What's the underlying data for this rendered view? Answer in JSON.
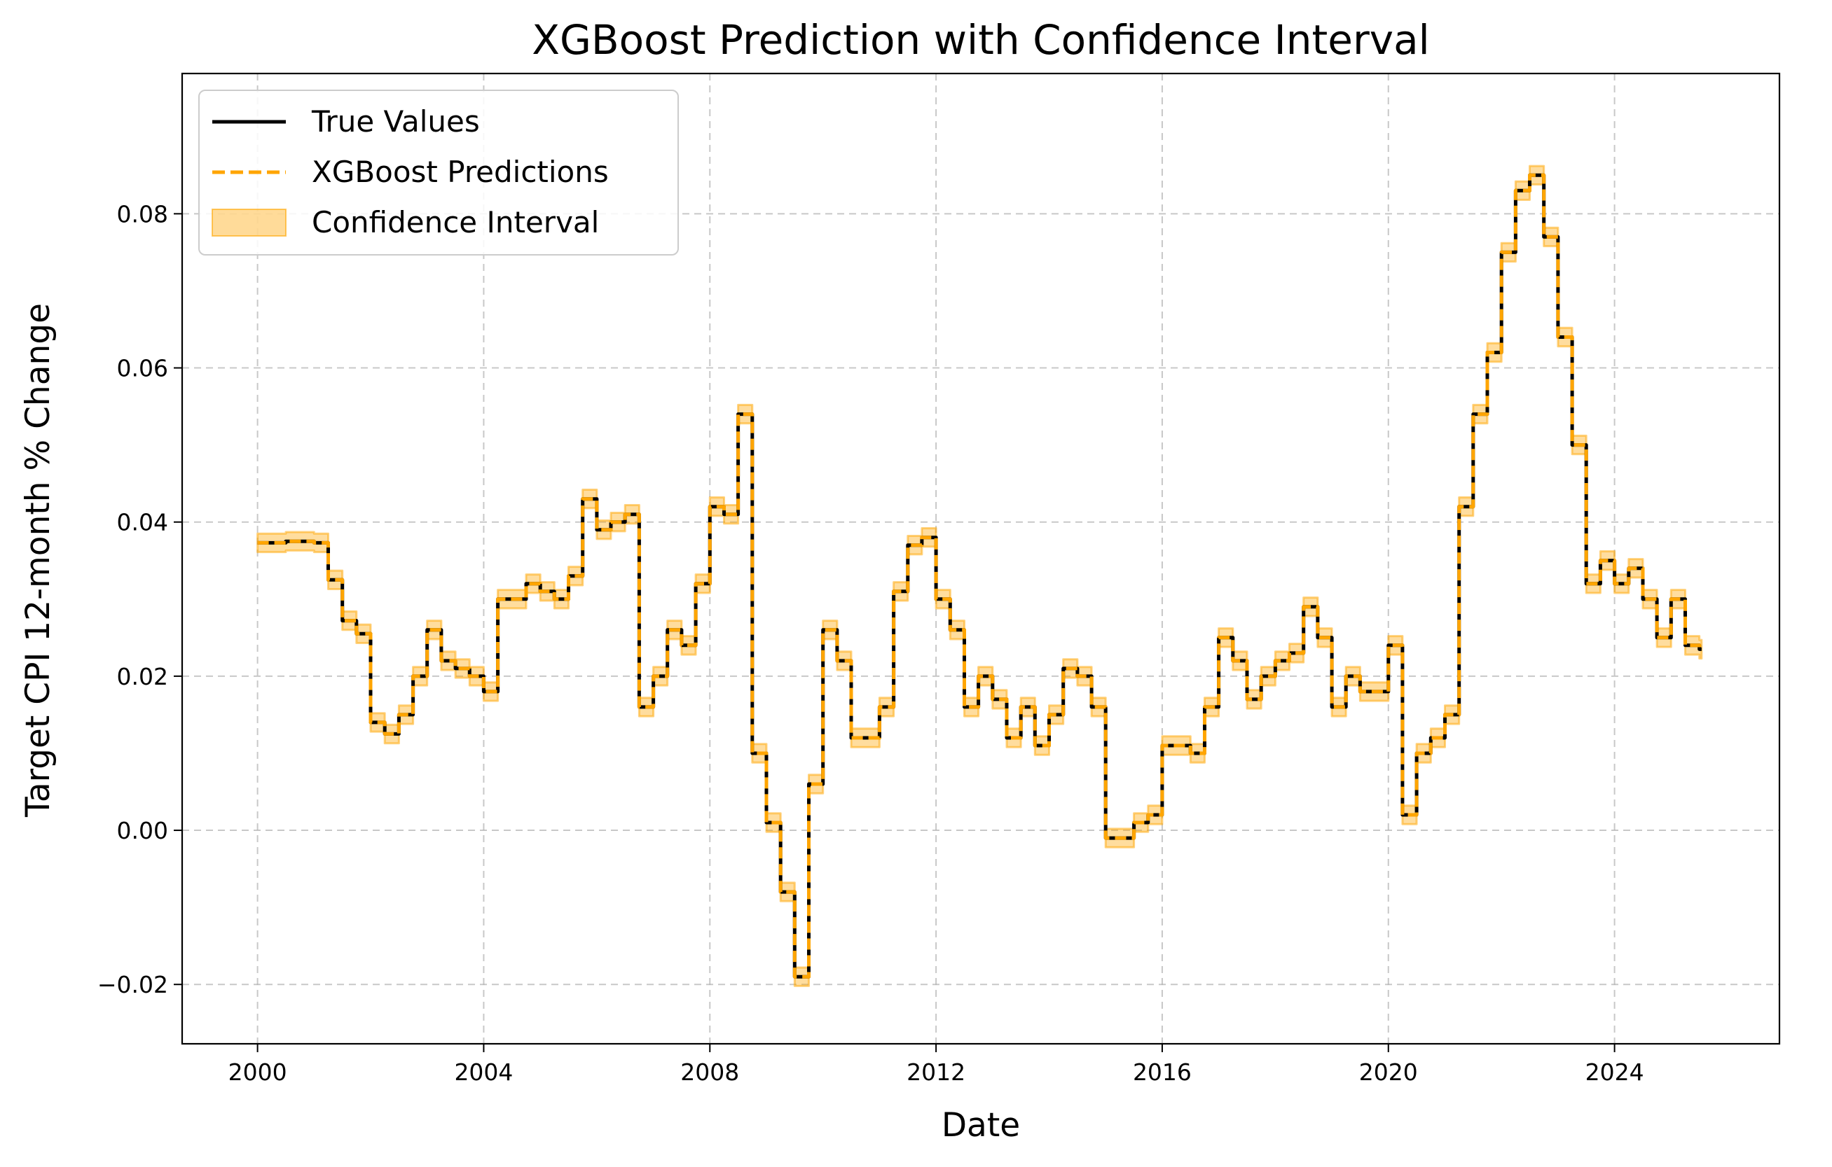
{
  "chart_data": {
    "type": "line",
    "title": "XGBoost Prediction with Confidence Interval",
    "xlabel": "Date",
    "ylabel": "Target CPI 12-month % Change",
    "xlim": [
      "1998-09",
      "2026-12"
    ],
    "ylim": [
      -0.0277,
      0.0982
    ],
    "x_ticks": [
      "2000",
      "2004",
      "2008",
      "2012",
      "2016",
      "2020",
      "2024"
    ],
    "y_ticks": [
      "−0.02",
      "0.00",
      "0.02",
      "0.04",
      "0.06",
      "0.08"
    ],
    "grid": true,
    "legend_position": "top-left",
    "colors": {
      "true_values": "#000000",
      "predictions": "#ffa500",
      "confidence_interval": "#ffa500"
    },
    "x": [
      "2000-01",
      "2000-07",
      "2001-01",
      "2001-04",
      "2001-07",
      "2001-10",
      "2002-01",
      "2002-04",
      "2002-07",
      "2002-10",
      "2003-01",
      "2003-04",
      "2003-07",
      "2003-10",
      "2004-01",
      "2004-04",
      "2004-07",
      "2004-10",
      "2005-01",
      "2005-04",
      "2005-07",
      "2005-10",
      "2006-01",
      "2006-04",
      "2006-07",
      "2006-10",
      "2007-01",
      "2007-04",
      "2007-07",
      "2007-10",
      "2008-01",
      "2008-04",
      "2008-07",
      "2008-10",
      "2009-01",
      "2009-04",
      "2009-07",
      "2009-10",
      "2010-01",
      "2010-04",
      "2010-07",
      "2010-10",
      "2011-01",
      "2011-04",
      "2011-07",
      "2011-10",
      "2012-01",
      "2012-04",
      "2012-07",
      "2012-10",
      "2013-01",
      "2013-04",
      "2013-07",
      "2013-10",
      "2014-01",
      "2014-04",
      "2014-07",
      "2014-10",
      "2015-01",
      "2015-04",
      "2015-07",
      "2015-10",
      "2016-01",
      "2016-04",
      "2016-07",
      "2016-10",
      "2017-01",
      "2017-04",
      "2017-07",
      "2017-10",
      "2018-01",
      "2018-04",
      "2018-07",
      "2018-10",
      "2019-01",
      "2019-04",
      "2019-07",
      "2019-10",
      "2020-01",
      "2020-04",
      "2020-07",
      "2020-10",
      "2021-01",
      "2021-04",
      "2021-07",
      "2021-10",
      "2022-01",
      "2022-04",
      "2022-07",
      "2022-10",
      "2023-01",
      "2023-04",
      "2023-07",
      "2023-10",
      "2024-01",
      "2024-04",
      "2024-07",
      "2024-10",
      "2025-01",
      "2025-04",
      "2025-07"
    ],
    "series": [
      {
        "name": "True Values",
        "style": "solid",
        "values": [
          0.0373,
          0.0375,
          0.0373,
          0.0325,
          0.0272,
          0.0255,
          0.014,
          0.0125,
          0.015,
          0.02,
          0.026,
          0.022,
          0.021,
          0.02,
          0.018,
          0.03,
          0.03,
          0.032,
          0.031,
          0.03,
          0.033,
          0.043,
          0.039,
          0.04,
          0.041,
          0.016,
          0.02,
          0.026,
          0.024,
          0.032,
          0.042,
          0.041,
          0.054,
          0.01,
          0.001,
          -0.008,
          -0.019,
          0.006,
          0.026,
          0.022,
          0.012,
          0.012,
          0.016,
          0.031,
          0.037,
          0.038,
          0.03,
          0.026,
          0.016,
          0.02,
          0.017,
          0.012,
          0.016,
          0.011,
          0.015,
          0.021,
          0.02,
          0.016,
          -0.001,
          -0.001,
          0.001,
          0.002,
          0.011,
          0.011,
          0.01,
          0.016,
          0.025,
          0.022,
          0.017,
          0.02,
          0.022,
          0.023,
          0.029,
          0.025,
          0.016,
          0.02,
          0.018,
          0.018,
          0.024,
          0.002,
          0.01,
          0.012,
          0.015,
          0.042,
          0.054,
          0.062,
          0.075,
          0.083,
          0.085,
          0.077,
          0.064,
          0.05,
          0.032,
          0.035,
          0.032,
          0.034,
          0.03,
          0.025,
          0.03,
          0.024,
          0.0235
        ]
      },
      {
        "name": "XGBoost Predictions",
        "style": "dashed",
        "values": [
          0.0373,
          0.0375,
          0.0373,
          0.0325,
          0.0272,
          0.0255,
          0.014,
          0.0125,
          0.015,
          0.02,
          0.026,
          0.022,
          0.021,
          0.02,
          0.018,
          0.03,
          0.03,
          0.032,
          0.031,
          0.03,
          0.033,
          0.043,
          0.039,
          0.04,
          0.041,
          0.016,
          0.02,
          0.026,
          0.024,
          0.032,
          0.042,
          0.041,
          0.054,
          0.01,
          0.001,
          -0.008,
          -0.019,
          0.006,
          0.026,
          0.022,
          0.012,
          0.012,
          0.016,
          0.031,
          0.037,
          0.038,
          0.03,
          0.026,
          0.016,
          0.02,
          0.017,
          0.012,
          0.016,
          0.011,
          0.015,
          0.021,
          0.02,
          0.016,
          -0.001,
          -0.001,
          0.001,
          0.002,
          0.011,
          0.011,
          0.01,
          0.016,
          0.025,
          0.022,
          0.017,
          0.02,
          0.022,
          0.023,
          0.029,
          0.025,
          0.016,
          0.02,
          0.018,
          0.018,
          0.024,
          0.002,
          0.01,
          0.012,
          0.015,
          0.042,
          0.054,
          0.062,
          0.075,
          0.083,
          0.085,
          0.077,
          0.064,
          0.05,
          0.032,
          0.035,
          0.032,
          0.034,
          0.03,
          0.025,
          0.03,
          0.024,
          0.0235
        ]
      },
      {
        "name": "Confidence Interval",
        "type": "band",
        "half_width": 0.0012
      }
    ]
  }
}
